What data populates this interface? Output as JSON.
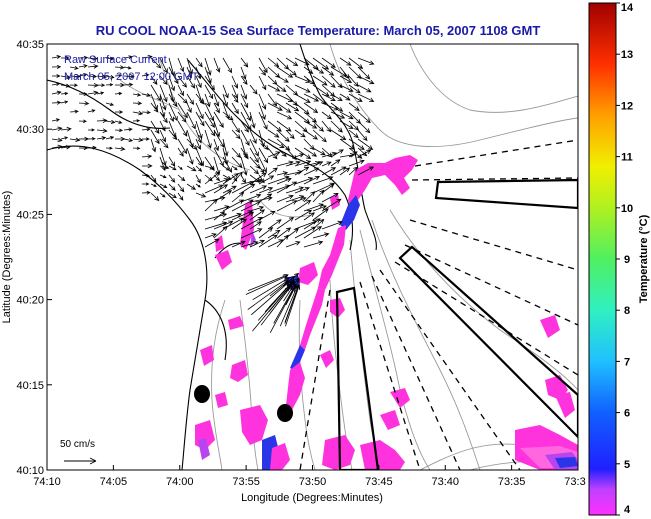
{
  "title": "RU COOL  NOAA-15  Sea Surface Temperature:  March 05, 2007 1108 GMT",
  "annotation_line1": "Raw Surface Current",
  "annotation_line2": "March 05, 2007 12:00 GMT",
  "scale_label": "50 cm/s",
  "axes": {
    "xlabel": "Longitude (Degrees:Minutes)",
    "ylabel": "Latitude (Degrees:Minutes)"
  },
  "colorbar": {
    "label": "Temperature (°C)",
    "min": 4,
    "max": 14,
    "ticks": [
      "4",
      "5",
      "6",
      "7",
      "8",
      "9",
      "10",
      "11",
      "12",
      "13",
      "14"
    ]
  },
  "chart_data": {
    "type": "map",
    "title": "RU COOL  NOAA-15  Sea Surface Temperature:  March 05, 2007 1108 GMT",
    "xlabel": "Longitude (Degrees:Minutes)",
    "ylabel": "Latitude (Degrees:Minutes)",
    "x_ticks": [
      "74:10",
      "74:05",
      "74:00",
      "73:55",
      "73:50",
      "73:45",
      "73:40",
      "73:35",
      "73:3"
    ],
    "y_ticks": [
      "40:35",
      "40:30",
      "40:25",
      "40:20",
      "40:15",
      "40:10"
    ],
    "xlim_minutes_west": [
      4450,
      4413
    ],
    "ylim_minutes": [
      2410,
      2435
    ],
    "colorbar_range": [
      4,
      14
    ],
    "sst_patch_colors": {
      "magenta": "#ff33dd",
      "pink": "#ff66e0",
      "purple": "#b844f0",
      "blue": "#2a35e8"
    },
    "land_color": "#ffffff",
    "line_color": "#000000",
    "contour_color": "#999999"
  }
}
